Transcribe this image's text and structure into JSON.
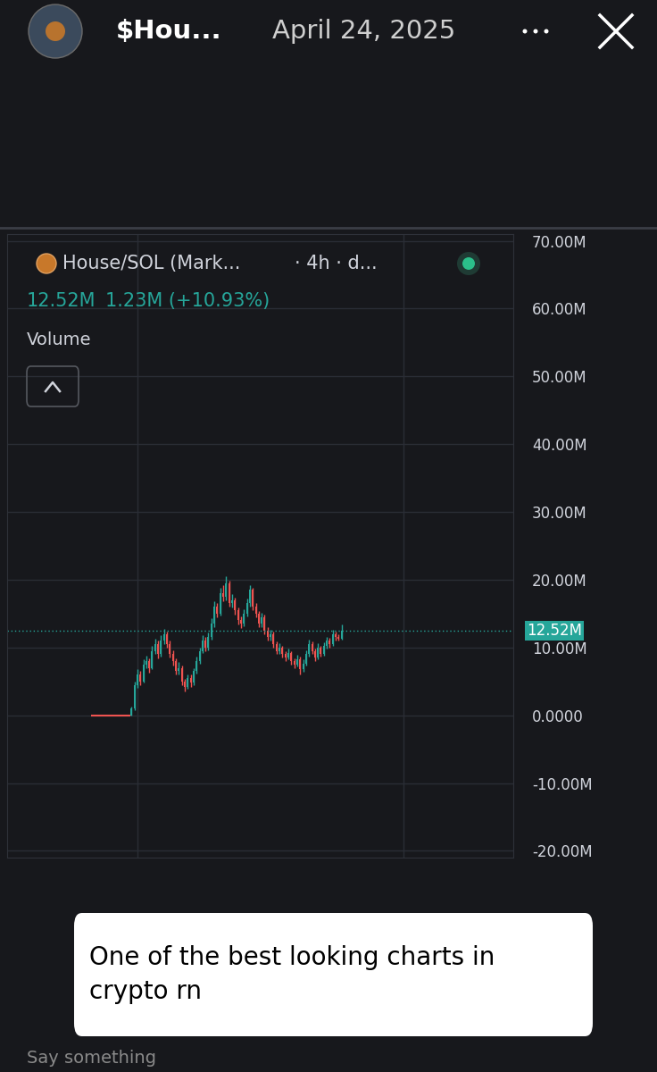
{
  "header": {
    "account": "$Hou...",
    "date": "April 24, 2025"
  },
  "chart_data": {
    "type": "candlestick",
    "title": "House/SOL (Mark...",
    "subtitle": "· 4h · d...",
    "value_text": "12.52M",
    "change_text": "1.23M (+10.93%)",
    "indicator": "Volume",
    "x": [
      -13,
      -12,
      -11,
      -10,
      -9,
      -8,
      -7,
      -6,
      -5,
      -4,
      -3,
      -2,
      -1,
      0,
      1,
      2,
      3,
      4,
      5,
      6,
      7,
      8,
      9,
      10,
      11,
      12,
      13,
      14,
      15,
      16,
      17,
      18,
      19,
      20,
      21,
      22,
      23,
      24,
      25,
      26,
      27,
      28,
      29,
      30,
      31,
      32,
      33,
      34,
      35,
      36,
      37,
      38,
      39,
      40,
      41,
      42,
      43,
      44,
      45,
      46,
      47,
      48,
      49,
      50,
      51,
      52,
      53,
      54,
      55,
      56,
      57,
      58,
      59,
      60,
      61,
      62,
      63,
      64,
      65,
      66,
      67,
      68,
      69,
      70,
      71
    ],
    "open": [
      0,
      0,
      0,
      0,
      0,
      0,
      0,
      0,
      0,
      0,
      0,
      0,
      0,
      0,
      1000000,
      4500000,
      6000000,
      5000000,
      7500000,
      8000000,
      7000000,
      9500000,
      10500000,
      9000000,
      11000000,
      12000000,
      10500000,
      9000000,
      8000000,
      6500000,
      7000000,
      5000000,
      4200000,
      5500000,
      4800000,
      6500000,
      8000000,
      9500000,
      11000000,
      10000000,
      11500000,
      13500000,
      16000000,
      15000000,
      18000000,
      17500000,
      19500000,
      16500000,
      17000000,
      15500000,
      14000000,
      13500000,
      15000000,
      16500000,
      18500000,
      16000000,
      15000000,
      13500000,
      14500000,
      12500000,
      11500000,
      12000000,
      10500000,
      9500000,
      10000000,
      9000000,
      8500000,
      9200000,
      8000000,
      7500000,
      8300000,
      6800000,
      7600000,
      9000000,
      10500000,
      9500000,
      8500000,
      10000000,
      9000000,
      10200000,
      11000000,
      10500000,
      12000000,
      11500000,
      11290000
    ],
    "high": [
      0,
      0,
      0,
      0,
      0,
      0,
      0,
      0,
      0,
      0,
      0,
      0,
      0,
      1300000,
      5000000,
      6800000,
      6500000,
      8200000,
      8800000,
      8400000,
      10200000,
      11300000,
      11000000,
      11800000,
      12800000,
      12400000,
      11000000,
      9600000,
      8400000,
      7800000,
      7300000,
      5400000,
      6000000,
      6000000,
      7000000,
      8600000,
      10000000,
      11800000,
      11500000,
      12200000,
      14300000,
      16800000,
      16500000,
      18800000,
      19200000,
      20500000,
      19800000,
      17900000,
      17400000,
      15900000,
      14600000,
      15700000,
      17200000,
      19200000,
      18800000,
      16600000,
      15400000,
      15100000,
      14800000,
      13000000,
      12600000,
      12300000,
      10900000,
      10600000,
      10300000,
      9400000,
      9800000,
      9500000,
      8400000,
      8900000,
      8600000,
      8200000,
      9600000,
      11100000,
      10900000,
      9800000,
      10600000,
      10300000,
      10800000,
      11600000,
      11400000,
      12600000,
      12400000,
      12000000,
      13400000
    ],
    "low": [
      0,
      0,
      0,
      0,
      0,
      0,
      0,
      0,
      0,
      0,
      0,
      0,
      0,
      0,
      800000,
      4000000,
      4400000,
      4800000,
      7000000,
      6300000,
      6800000,
      9000000,
      8400000,
      8700000,
      10500000,
      10000000,
      8500000,
      7400000,
      6000000,
      6000000,
      4500000,
      3500000,
      3900000,
      4200000,
      4500000,
      6200000,
      7600000,
      9200000,
      9400000,
      9600000,
      11200000,
      13000000,
      14400000,
      14700000,
      16800000,
      17000000,
      16000000,
      15900000,
      14900000,
      13400000,
      12900000,
      13100000,
      14600000,
      16000000,
      15500000,
      14400000,
      13000000,
      13000000,
      12000000,
      11000000,
      11000000,
      10000000,
      9000000,
      9100000,
      8500000,
      8000000,
      8200000,
      7500000,
      6900000,
      7200000,
      6000000,
      6400000,
      7300000,
      8700000,
      9000000,
      8000000,
      8200000,
      8600000,
      8800000,
      9900000,
      10000000,
      10200000,
      11000000,
      11000000,
      11100000
    ],
    "close": [
      0,
      0,
      0,
      0,
      0,
      0,
      0,
      0,
      0,
      0,
      0,
      0,
      0,
      1000000,
      4500000,
      6000000,
      5000000,
      7500000,
      8000000,
      7000000,
      9500000,
      10500000,
      9000000,
      11000000,
      12000000,
      10500000,
      9000000,
      8000000,
      6500000,
      7000000,
      5000000,
      4200000,
      5500000,
      4800000,
      6500000,
      8000000,
      9500000,
      11000000,
      10000000,
      11500000,
      13500000,
      16000000,
      15000000,
      18000000,
      17500000,
      19500000,
      16500000,
      17000000,
      15500000,
      14000000,
      13500000,
      15000000,
      16500000,
      18500000,
      16000000,
      15000000,
      13500000,
      14500000,
      12500000,
      11500000,
      12000000,
      10500000,
      9500000,
      10000000,
      9000000,
      8500000,
      9200000,
      8000000,
      7500000,
      8300000,
      6800000,
      7600000,
      9000000,
      10500000,
      9500000,
      8500000,
      10000000,
      9000000,
      10200000,
      11000000,
      10500000,
      12000000,
      11500000,
      11290000,
      12520000
    ],
    "last_price": {
      "value": 12520000,
      "label": "12.52M"
    },
    "xlim": [
      -42,
      129
    ],
    "xticks": [
      2,
      92
    ],
    "ylim": [
      -21000000,
      71000000
    ],
    "yticks": [
      {
        "value": 70000000,
        "label": "70.00M"
      },
      {
        "value": 60000000,
        "label": "60.00M"
      },
      {
        "value": 50000000,
        "label": "50.00M"
      },
      {
        "value": 40000000,
        "label": "40.00M"
      },
      {
        "value": 30000000,
        "label": "30.00M"
      },
      {
        "value": 20000000,
        "label": "20.00M"
      },
      {
        "value": 10000000,
        "label": "10.00M"
      },
      {
        "value": 0,
        "label": "0.0000"
      },
      {
        "value": -10000000,
        "label": "-10.00M"
      },
      {
        "value": -20000000,
        "label": "-20.00M"
      }
    ],
    "grid": true,
    "tick_labels": "y"
  },
  "caption": [
    "One of the best looking charts in",
    "crypto rn"
  ],
  "footer": "Say something"
}
